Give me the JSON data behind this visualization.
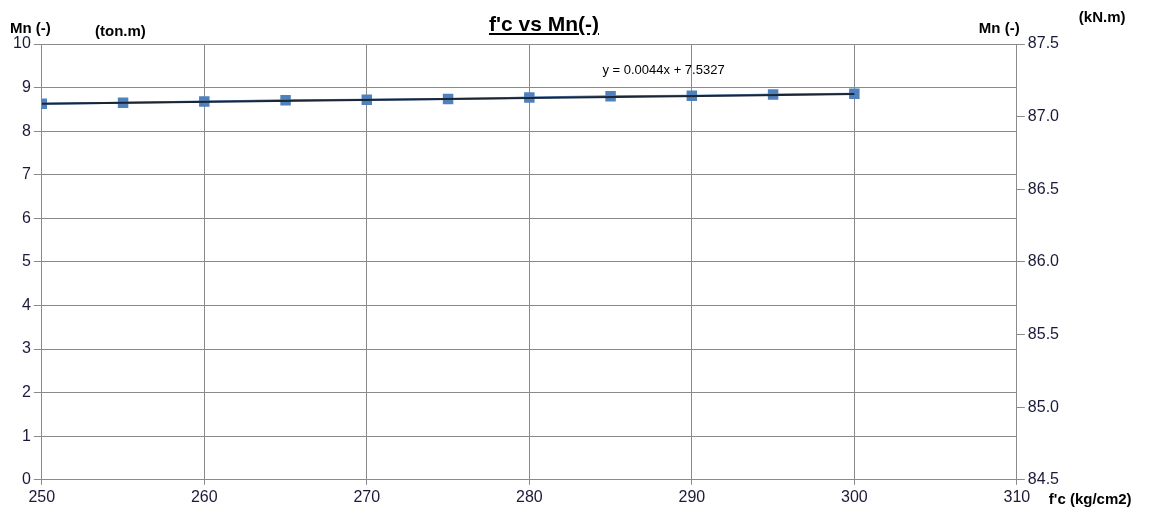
{
  "chart_data": {
    "type": "line",
    "title": "f'c vs Mn(-)",
    "xlabel": "f'c (kg/cm2)",
    "ylabel": "Mn (-)",
    "y2label": "Mn (-)",
    "annotations": [
      "(ton.m)",
      "(kN.m)",
      "y = 0.0044x + 7.5327"
    ],
    "series": [
      {
        "color": "#4f81bd",
        "marker": "square",
        "x": [
          250,
          255,
          260,
          265,
          270,
          275,
          280,
          285,
          290,
          295,
          300
        ],
        "values": [
          8.63,
          8.65,
          8.68,
          8.71,
          8.72,
          8.74,
          8.77,
          8.8,
          8.81,
          8.84,
          8.86
        ]
      },
      {
        "color": "#1c2533",
        "marker": "none",
        "x": [
          250,
          300
        ],
        "values": [
          8.63,
          8.85
        ]
      }
    ],
    "xlim": [
      250,
      310
    ],
    "xticks": [
      250,
      260,
      270,
      280,
      290,
      300,
      310
    ],
    "ylim": [
      0,
      10
    ],
    "yticks": [
      0,
      1,
      2,
      3,
      4,
      5,
      6,
      7,
      8,
      9,
      10
    ],
    "y2lim": [
      84.5,
      87.5
    ],
    "y2ticks": [
      84.5,
      {
        "value": 85,
        "label": "85.0"
      },
      85.5,
      {
        "value": 86,
        "label": "86.0"
      },
      86.5,
      {
        "value": 87,
        "label": "87.0"
      },
      87.5
    ],
    "grid": true,
    "legend": false
  }
}
